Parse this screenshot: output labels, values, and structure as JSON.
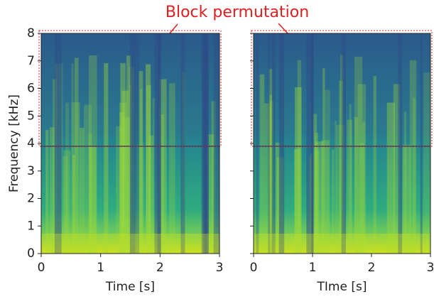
{
  "annotation": "Block permutation",
  "chart_data": [
    {
      "type": "spectrogram",
      "xlabel": "Time [s]",
      "ylabel": "Frequency [kHz]",
      "xlim": [
        0,
        3
      ],
      "xticks": [
        0,
        1,
        2,
        3
      ],
      "ylim": [
        0,
        8
      ],
      "yticks": [
        0,
        1,
        2,
        3,
        4,
        5,
        6,
        7,
        8
      ]
    },
    {
      "type": "spectrogram",
      "xlabel": "TIme [s]",
      "xlim": [
        0,
        3
      ],
      "xticks": [
        0,
        1,
        2,
        3
      ],
      "ylim": [
        0,
        8
      ],
      "yticks": [
        0,
        1,
        2,
        3,
        4,
        5,
        6,
        7,
        8
      ]
    }
  ]
}
